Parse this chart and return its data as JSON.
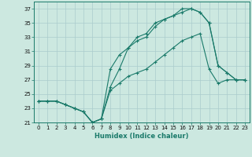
{
  "xlabel": "Humidex (Indice chaleur)",
  "background_color": "#cce8e0",
  "grid_color": "#aacccc",
  "line_color": "#1a7a6a",
  "xlim": [
    -0.5,
    23.5
  ],
  "ylim": [
    21,
    38
  ],
  "yticks": [
    21,
    23,
    25,
    27,
    29,
    31,
    33,
    35,
    37
  ],
  "xticks": [
    0,
    1,
    2,
    3,
    4,
    5,
    6,
    7,
    8,
    9,
    10,
    11,
    12,
    13,
    14,
    15,
    16,
    17,
    18,
    19,
    20,
    21,
    22,
    23
  ],
  "line1_x": [
    0,
    1,
    2,
    3,
    4,
    5,
    6,
    7,
    8,
    9,
    10,
    11,
    12,
    13,
    14,
    15,
    16,
    17,
    18,
    19,
    20,
    21,
    22,
    23
  ],
  "line1_y": [
    24.0,
    24.0,
    24.0,
    23.5,
    23.0,
    22.5,
    21.0,
    21.5,
    25.5,
    26.5,
    27.5,
    28.0,
    28.5,
    29.5,
    30.5,
    31.5,
    32.5,
    33.0,
    33.5,
    28.5,
    26.5,
    27.0,
    27.0,
    27.0
  ],
  "line2_x": [
    0,
    1,
    2,
    3,
    4,
    5,
    6,
    7,
    8,
    9,
    10,
    11,
    12,
    13,
    14,
    15,
    16,
    17,
    18,
    19,
    20,
    21,
    22,
    23
  ],
  "line2_y": [
    24.0,
    24.0,
    24.0,
    23.5,
    23.0,
    22.5,
    21.0,
    21.5,
    28.5,
    30.5,
    31.5,
    33.0,
    33.5,
    35.0,
    35.5,
    36.0,
    36.5,
    37.0,
    36.5,
    35.0,
    29.0,
    28.0,
    27.0,
    27.0
  ],
  "line3_x": [
    0,
    1,
    2,
    3,
    4,
    5,
    6,
    7,
    8,
    9,
    10,
    11,
    12,
    13,
    14,
    15,
    16,
    17,
    18,
    19,
    20,
    21,
    22,
    23
  ],
  "line3_y": [
    24.0,
    24.0,
    24.0,
    23.5,
    23.0,
    22.5,
    21.0,
    21.5,
    26.0,
    28.5,
    31.5,
    32.5,
    33.0,
    34.5,
    35.5,
    36.0,
    37.0,
    37.0,
    36.5,
    35.0,
    29.0,
    28.0,
    27.0,
    27.0
  ],
  "tick_fontsize": 5.0,
  "xlabel_fontsize": 6.0
}
